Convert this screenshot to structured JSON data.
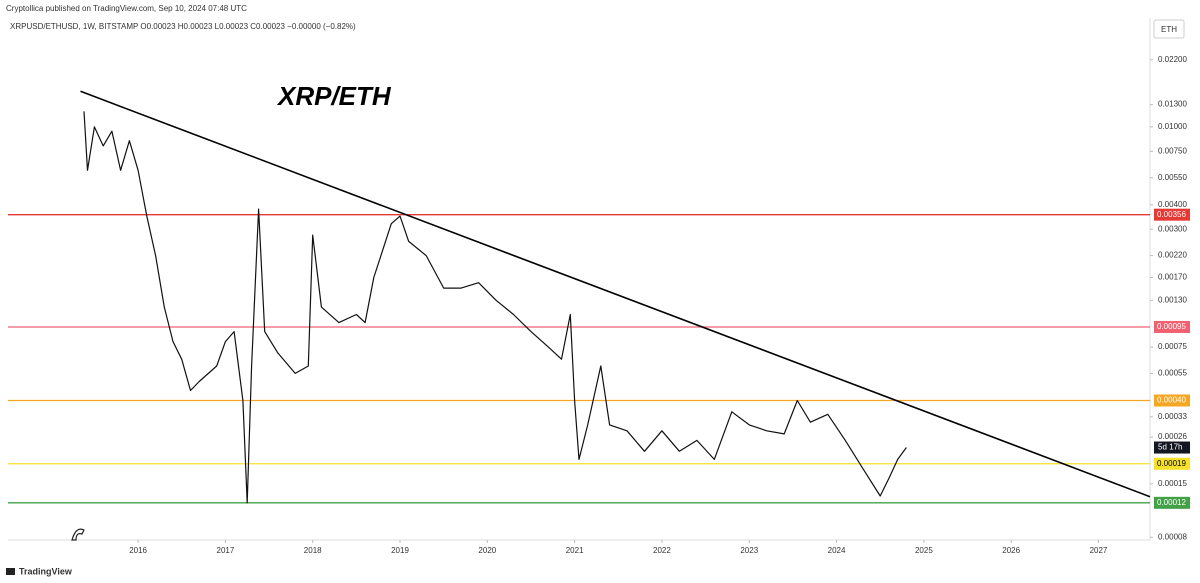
{
  "header": "Cryptollica published on TradingView.com, Sep 10, 2024 07:48 UTC",
  "footer": "TradingView",
  "chart_data": {
    "type": "line",
    "legend_text": "XRPUSD/ETHUSD, 1W, BITSTAMP  O0.00023  H0.00023  L0.00023  C0.00023  −0.00000 (−0.82%)",
    "title": "XRP/ETH",
    "y_unit": "ETH",
    "countdown": "5d 17h",
    "log_scale": true,
    "grid": false,
    "xlim": [
      2014.51,
      2027.59
    ],
    "xticks": [
      2016,
      2017,
      2018,
      2019,
      2020,
      2021,
      2022,
      2023,
      2024,
      2025,
      2026,
      2027
    ],
    "ylim": [
      7.75e-05,
      0.036
    ],
    "yticks": [
      {
        "value": 0.022,
        "label": "0.02200"
      },
      {
        "value": 0.013,
        "label": "0.01300"
      },
      {
        "value": 0.01,
        "label": "0.01000"
      },
      {
        "value": 0.0075,
        "label": "0.00750"
      },
      {
        "value": 0.0055,
        "label": "0.00550"
      },
      {
        "value": 0.004,
        "label": "0.00400"
      },
      {
        "value": 0.003,
        "label": "0.00300"
      },
      {
        "value": 0.0022,
        "label": "0.00220"
      },
      {
        "value": 0.0017,
        "label": "0.00170"
      },
      {
        "value": 0.0013,
        "label": "0.00130"
      },
      {
        "value": 0.00075,
        "label": "0.00075"
      },
      {
        "value": 0.00055,
        "label": "0.00055"
      },
      {
        "value": 0.00033,
        "label": "0.00033"
      },
      {
        "value": 0.00026,
        "label": "0.00026"
      },
      {
        "value": 0.00015,
        "label": "0.00015"
      },
      {
        "value": 8e-05,
        "label": "0.00008"
      }
    ],
    "levels": [
      {
        "value": 0.00356,
        "label": "0.00356",
        "color": "#e53935"
      },
      {
        "value": 0.00095,
        "label": "0.00095",
        "color": "#f06272"
      },
      {
        "value": 0.0004,
        "label": "0.00040",
        "color": "#f5a623"
      },
      {
        "value": 0.00019,
        "label": "0.00019",
        "color": "#f5e12a"
      },
      {
        "value": 0.00012,
        "label": "0.00012",
        "color": "#43a047"
      }
    ],
    "trendline": {
      "color": "#000000",
      "x": [
        2015.34,
        2027.59
      ],
      "y": [
        0.0152,
        0.000129
      ]
    },
    "series": [
      {
        "name": "XRPUSD/ETHUSD",
        "color": "#111111",
        "x": [
          2015.38,
          2015.42,
          2015.5,
          2015.6,
          2015.7,
          2015.8,
          2015.9,
          2016.0,
          2016.1,
          2016.2,
          2016.3,
          2016.4,
          2016.5,
          2016.6,
          2016.7,
          2016.9,
          2017.0,
          2017.1,
          2017.15,
          2017.2,
          2017.25,
          2017.3,
          2017.38,
          2017.45,
          2017.6,
          2017.8,
          2017.95,
          2018.0,
          2018.1,
          2018.3,
          2018.5,
          2018.6,
          2018.7,
          2018.9,
          2019.0,
          2019.1,
          2019.3,
          2019.5,
          2019.7,
          2019.9,
          2020.1,
          2020.3,
          2020.5,
          2020.7,
          2020.85,
          2020.95,
          2021.0,
          2021.05,
          2021.15,
          2021.3,
          2021.4,
          2021.6,
          2021.8,
          2022.0,
          2022.2,
          2022.4,
          2022.6,
          2022.8,
          2023.0,
          2023.2,
          2023.4,
          2023.55,
          2023.7,
          2023.9,
          2024.1,
          2024.3,
          2024.5,
          2024.6,
          2024.7,
          2024.8
        ],
        "values": [
          0.012,
          0.006,
          0.01,
          0.008,
          0.0095,
          0.006,
          0.0085,
          0.006,
          0.0035,
          0.0022,
          0.0012,
          0.0008,
          0.00065,
          0.00045,
          0.0005,
          0.0006,
          0.0008,
          0.0009,
          0.0006,
          0.0004,
          0.00012,
          0.0006,
          0.0038,
          0.0009,
          0.0007,
          0.00055,
          0.0006,
          0.0028,
          0.0012,
          0.001,
          0.0011,
          0.001,
          0.0017,
          0.0032,
          0.0035,
          0.0026,
          0.0022,
          0.0015,
          0.0015,
          0.0016,
          0.0013,
          0.0011,
          0.0009,
          0.00075,
          0.00065,
          0.0011,
          0.0004,
          0.0002,
          0.0003,
          0.0006,
          0.0003,
          0.00028,
          0.00022,
          0.00028,
          0.00022,
          0.00025,
          0.0002,
          0.00035,
          0.0003,
          0.00028,
          0.00027,
          0.0004,
          0.00031,
          0.00034,
          0.00025,
          0.00018,
          0.00013,
          0.00016,
          0.0002,
          0.00023
        ]
      }
    ]
  }
}
